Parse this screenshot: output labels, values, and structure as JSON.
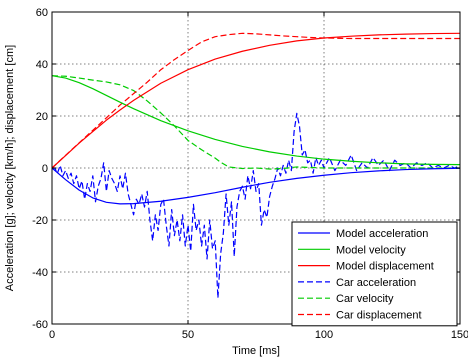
{
  "chart_data": {
    "type": "line",
    "xlabel": "Time [ms]",
    "ylabel": "Acceleration [g]; velocity [km/h]; displacement [cm]",
    "xlim": [
      0,
      150
    ],
    "ylim": [
      -60,
      60
    ],
    "xticks": [
      0,
      50,
      100,
      150
    ],
    "yticks": [
      -60,
      -40,
      -20,
      0,
      20,
      40,
      60
    ],
    "grid": true,
    "legend_position": "bottom-right",
    "series": [
      {
        "name": "Model acceleration",
        "color": "#0000ff",
        "dash": "solid",
        "x": [
          0,
          5,
          10,
          15,
          20,
          25,
          30,
          40,
          50,
          60,
          70,
          80,
          90,
          100,
          110,
          120,
          130,
          140,
          150
        ],
        "y": [
          0,
          -4.5,
          -8.5,
          -11.5,
          -13.2,
          -13.8,
          -13.7,
          -12.8,
          -11.3,
          -9.5,
          -7.4,
          -5.5,
          -4.0,
          -2.8,
          -1.8,
          -1.1,
          -0.6,
          -0.3,
          -0.1
        ]
      },
      {
        "name": "Model velocity",
        "color": "#00cc00",
        "dash": "solid",
        "x": [
          0,
          5,
          10,
          15,
          20,
          25,
          30,
          40,
          50,
          60,
          70,
          80,
          90,
          100,
          110,
          120,
          130,
          140,
          150
        ],
        "y": [
          35.5,
          34.6,
          32.8,
          30.5,
          27.9,
          25.3,
          22.8,
          18.2,
          14.3,
          11.0,
          8.3,
          6.2,
          4.6,
          3.4,
          2.6,
          2.0,
          1.6,
          1.4,
          1.3
        ]
      },
      {
        "name": "Model displacement",
        "color": "#ff0000",
        "dash": "solid",
        "x": [
          0,
          5,
          10,
          15,
          20,
          25,
          30,
          40,
          50,
          60,
          70,
          80,
          90,
          100,
          110,
          120,
          130,
          140,
          150
        ],
        "y": [
          0,
          4.8,
          9.6,
          14.0,
          18.4,
          22.3,
          26.0,
          32.6,
          37.8,
          41.9,
          44.9,
          47.2,
          48.9,
          50.0,
          50.7,
          51.2,
          51.5,
          51.7,
          51.8
        ]
      },
      {
        "name": "Car acceleration",
        "color": "#0000ff",
        "dash": "dashed",
        "x": [
          0,
          1,
          2,
          3,
          4,
          5,
          6,
          7,
          8,
          9,
          10,
          11,
          12,
          13,
          14,
          15,
          16,
          17,
          18,
          19,
          20,
          21,
          22,
          23,
          24,
          25,
          26,
          27,
          28,
          29,
          30,
          31,
          32,
          33,
          34,
          35,
          36,
          37,
          38,
          39,
          40,
          41,
          42,
          43,
          44,
          45,
          46,
          47,
          48,
          49,
          50,
          51,
          52,
          53,
          54,
          55,
          56,
          57,
          58,
          59,
          60,
          61,
          62,
          63,
          64,
          65,
          66,
          67,
          68,
          69,
          70,
          71,
          72,
          73,
          74,
          75,
          76,
          77,
          78,
          79,
          80,
          81,
          82,
          83,
          84,
          85,
          86,
          87,
          88,
          89,
          90,
          91,
          92,
          93,
          94,
          95,
          96,
          97,
          98,
          99,
          100,
          102,
          104,
          106,
          108,
          110,
          112,
          114,
          116,
          118,
          120,
          122,
          124,
          126,
          128,
          130,
          132,
          134,
          136,
          138,
          140,
          142,
          144,
          146,
          148,
          150
        ],
        "y": [
          0,
          0,
          -2,
          1,
          -3,
          -1,
          -4,
          -2,
          -6,
          -3,
          -8,
          -5,
          -12,
          -6,
          -9,
          -3,
          -13,
          -7,
          -4,
          2,
          -9,
          -1,
          -4,
          -6,
          -9,
          -3,
          -8,
          -2,
          -10,
          -14,
          -18,
          -12,
          -14,
          -10,
          -15,
          -9,
          -20,
          -28,
          -18,
          -24,
          -14,
          -12,
          -22,
          -30,
          -16,
          -26,
          -20,
          -28,
          -18,
          -30,
          -22,
          -32,
          -14,
          -24,
          -20,
          -30,
          -22,
          -35,
          -20,
          -31,
          -28,
          -50,
          -33,
          -25,
          -10,
          -22,
          -13,
          -34,
          -15,
          -9,
          -7,
          -12,
          -3,
          -8,
          -1,
          -9,
          -6,
          -22,
          -16,
          -19,
          -11,
          -7,
          -4,
          0,
          -3,
          1,
          -2,
          3,
          -1,
          14,
          21,
          16,
          5,
          7,
          2,
          3,
          -2,
          4,
          1,
          3,
          0,
          4,
          -1,
          3,
          1,
          5,
          -1,
          2,
          0,
          4,
          1,
          3,
          -1,
          3,
          1,
          2,
          0,
          2,
          1,
          2,
          0,
          1,
          0,
          1,
          0,
          1
        ]
      },
      {
        "name": "Car velocity",
        "color": "#00cc00",
        "dash": "dashed",
        "x": [
          0,
          5,
          10,
          15,
          20,
          25,
          30,
          35,
          40,
          45,
          50,
          55,
          60,
          62,
          65,
          70,
          75,
          80,
          85,
          90,
          95,
          100,
          110,
          120,
          130,
          140,
          150
        ],
        "y": [
          35.5,
          35.3,
          34.6,
          33.8,
          33.1,
          32.0,
          29.8,
          25.8,
          21.2,
          16.2,
          10.6,
          7.0,
          3.8,
          2.2,
          0.4,
          -0.2,
          0.0,
          -0.4,
          -0.2,
          0.4,
          0.2,
          0.0,
          0.0,
          0.0,
          0.0,
          0.0,
          0.0
        ]
      },
      {
        "name": "Car displacement",
        "color": "#ff0000",
        "dash": "dashed",
        "x": [
          0,
          5,
          10,
          15,
          20,
          25,
          30,
          35,
          40,
          45,
          50,
          55,
          60,
          65,
          70,
          75,
          80,
          85,
          90,
          95,
          100,
          110,
          120,
          130,
          140,
          150
        ],
        "y": [
          0,
          4.9,
          9.7,
          14.5,
          19.3,
          24.2,
          28.6,
          33.0,
          37.8,
          41.7,
          45.2,
          48.5,
          50.5,
          51.3,
          51.8,
          51.6,
          51.2,
          50.8,
          50.5,
          50.2,
          50.0,
          49.8,
          49.8,
          49.8,
          49.8,
          49.8
        ]
      }
    ]
  }
}
